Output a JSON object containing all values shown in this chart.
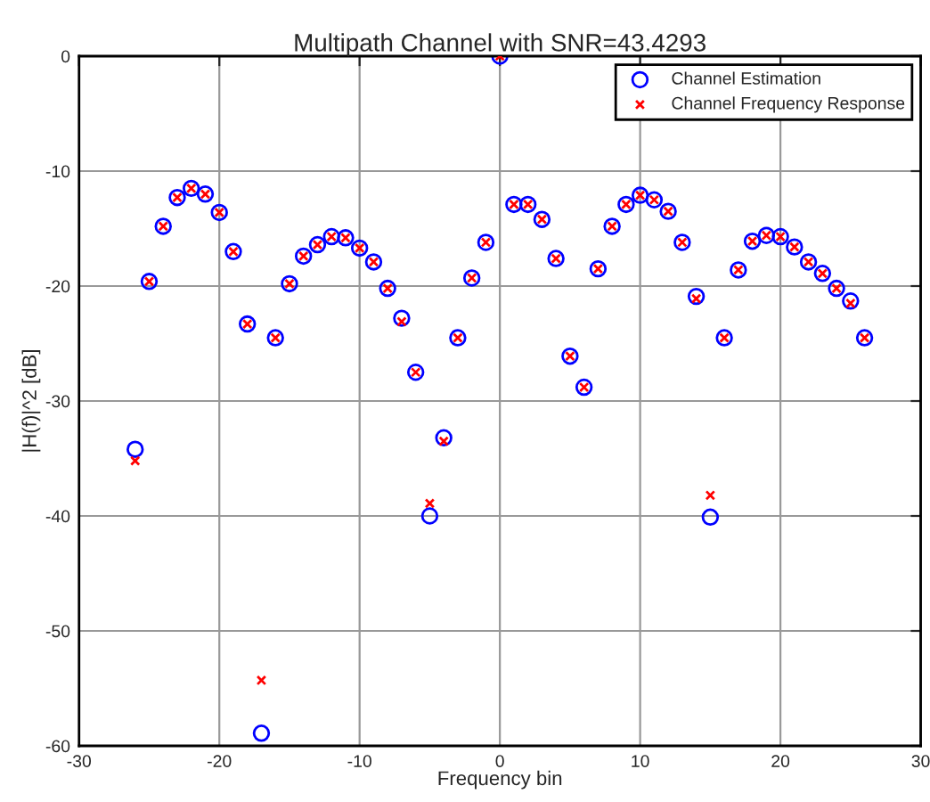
{
  "chart_data": {
    "type": "scatter",
    "title": "Multipath Channel with SNR=43.4293",
    "xlabel": "Frequency bin",
    "ylabel": "|H(f)|^2 [dB]",
    "x": [
      -26,
      -25,
      -24,
      -23,
      -22,
      -21,
      -20,
      -19,
      -18,
      -17,
      -16,
      -15,
      -14,
      -13,
      -12,
      -11,
      -10,
      -9,
      -8,
      -7,
      -6,
      -5,
      -4,
      -3,
      -2,
      -1,
      0,
      1,
      2,
      3,
      4,
      5,
      6,
      7,
      8,
      9,
      10,
      11,
      12,
      13,
      14,
      15,
      16,
      17,
      18,
      19,
      20,
      21,
      22,
      23,
      24,
      25,
      26
    ],
    "series": [
      {
        "name": "Channel Estimation",
        "color": "#0000ff",
        "marker": "circle",
        "values": [
          -34.2,
          -19.6,
          -14.8,
          -12.3,
          -11.5,
          -12,
          -13.6,
          -17,
          -23.3,
          -58.9,
          -24.5,
          -19.8,
          -17.4,
          -16.4,
          -15.7,
          -15.8,
          -16.7,
          -17.9,
          -20.2,
          -22.8,
          -27.5,
          -40,
          -33.2,
          -24.5,
          -19.3,
          -16.2,
          0,
          -12.9,
          -12.9,
          -14.2,
          -17.6,
          -26.1,
          -28.8,
          -18.5,
          -14.8,
          -12.9,
          -12.1,
          -12.5,
          -13.5,
          -16.2,
          -20.9,
          -40.1,
          -24.5,
          -18.6,
          -16.1,
          -15.6,
          -15.7,
          -16.6,
          -17.9,
          -18.9,
          -20.2,
          -21.3,
          -24.5
        ]
      },
      {
        "name": "Channel Frequency Response",
        "color": "#ff0000",
        "marker": "cross",
        "values": [
          -35.2,
          -19.6,
          -14.8,
          -12.3,
          -11.5,
          -12,
          -13.6,
          -17,
          -23.3,
          -54.3,
          -24.5,
          -19.8,
          -17.4,
          -16.4,
          -15.7,
          -15.8,
          -16.7,
          -17.9,
          -20.2,
          -23.1,
          -27.5,
          -38.9,
          -33.5,
          -24.5,
          -19.3,
          -16.2,
          0,
          -12.9,
          -12.9,
          -14.2,
          -17.6,
          -26.1,
          -28.8,
          -18.5,
          -14.8,
          -12.9,
          -12.1,
          -12.5,
          -13.5,
          -16.2,
          -21.1,
          -38.2,
          -24.5,
          -18.6,
          -16.1,
          -15.6,
          -15.7,
          -16.6,
          -17.9,
          -18.9,
          -20.2,
          -21.5,
          -24.5
        ]
      }
    ],
    "xlim": [
      -30,
      30
    ],
    "xticks": [
      -30,
      -20,
      -10,
      0,
      10,
      20,
      30
    ],
    "ylim": [
      -60,
      0
    ],
    "yticks": [
      -60,
      -50,
      -40,
      -30,
      -20,
      -10,
      0
    ],
    "grid": true,
    "legend": "top right"
  }
}
